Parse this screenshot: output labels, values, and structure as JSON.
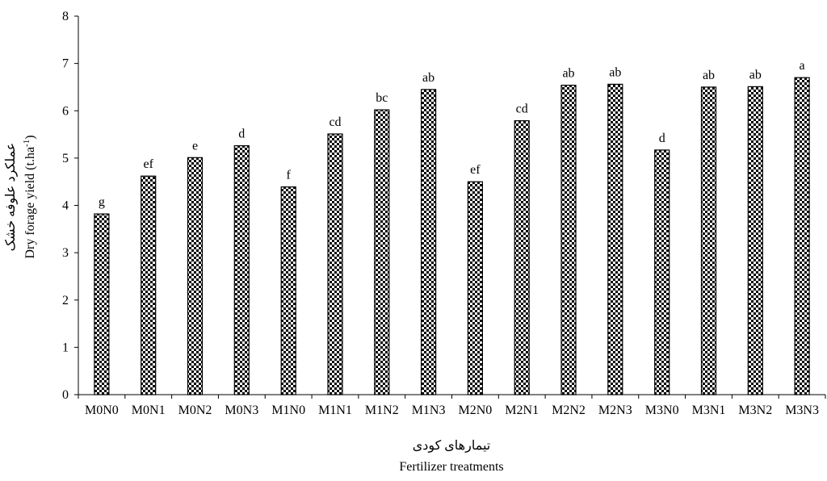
{
  "chart_data": {
    "type": "bar",
    "categories": [
      "M0N0",
      "M0N1",
      "M0N2",
      "M0N3",
      "M1N0",
      "M1N1",
      "M1N2",
      "M1N3",
      "M2N0",
      "M2N1",
      "M2N2",
      "M2N3",
      "M3N0",
      "M3N1",
      "M3N2",
      "M3N3"
    ],
    "values": [
      3.82,
      4.62,
      5.01,
      5.26,
      4.39,
      5.51,
      6.02,
      6.45,
      4.5,
      5.79,
      6.54,
      6.56,
      5.17,
      6.5,
      6.51,
      6.7
    ],
    "significance_letters": [
      "g",
      "ef",
      "e",
      "d",
      "f",
      "cd",
      "bc",
      "ab",
      "ef",
      "cd",
      "ab",
      "ab",
      "d",
      "ab",
      "ab",
      "a"
    ],
    "ylim": [
      0,
      8
    ],
    "yticks": [
      0,
      1,
      2,
      3,
      4,
      5,
      6,
      7,
      8
    ],
    "ylabel_fa": "عملکرد علوفه خشک",
    "ylabel_en_prefix": "Dry forage yield (t.ha",
    "ylabel_en_sup": "-1",
    "ylabel_en_suffix": ")",
    "xlabel_fa": "تیمارهای کودی",
    "xlabel_en": "Fertilizer treatments",
    "bar_fill": "checkerboard",
    "bar_colors": {
      "dark": "#000000",
      "light": "#ffffff"
    },
    "grid": false,
    "legend": "none"
  }
}
